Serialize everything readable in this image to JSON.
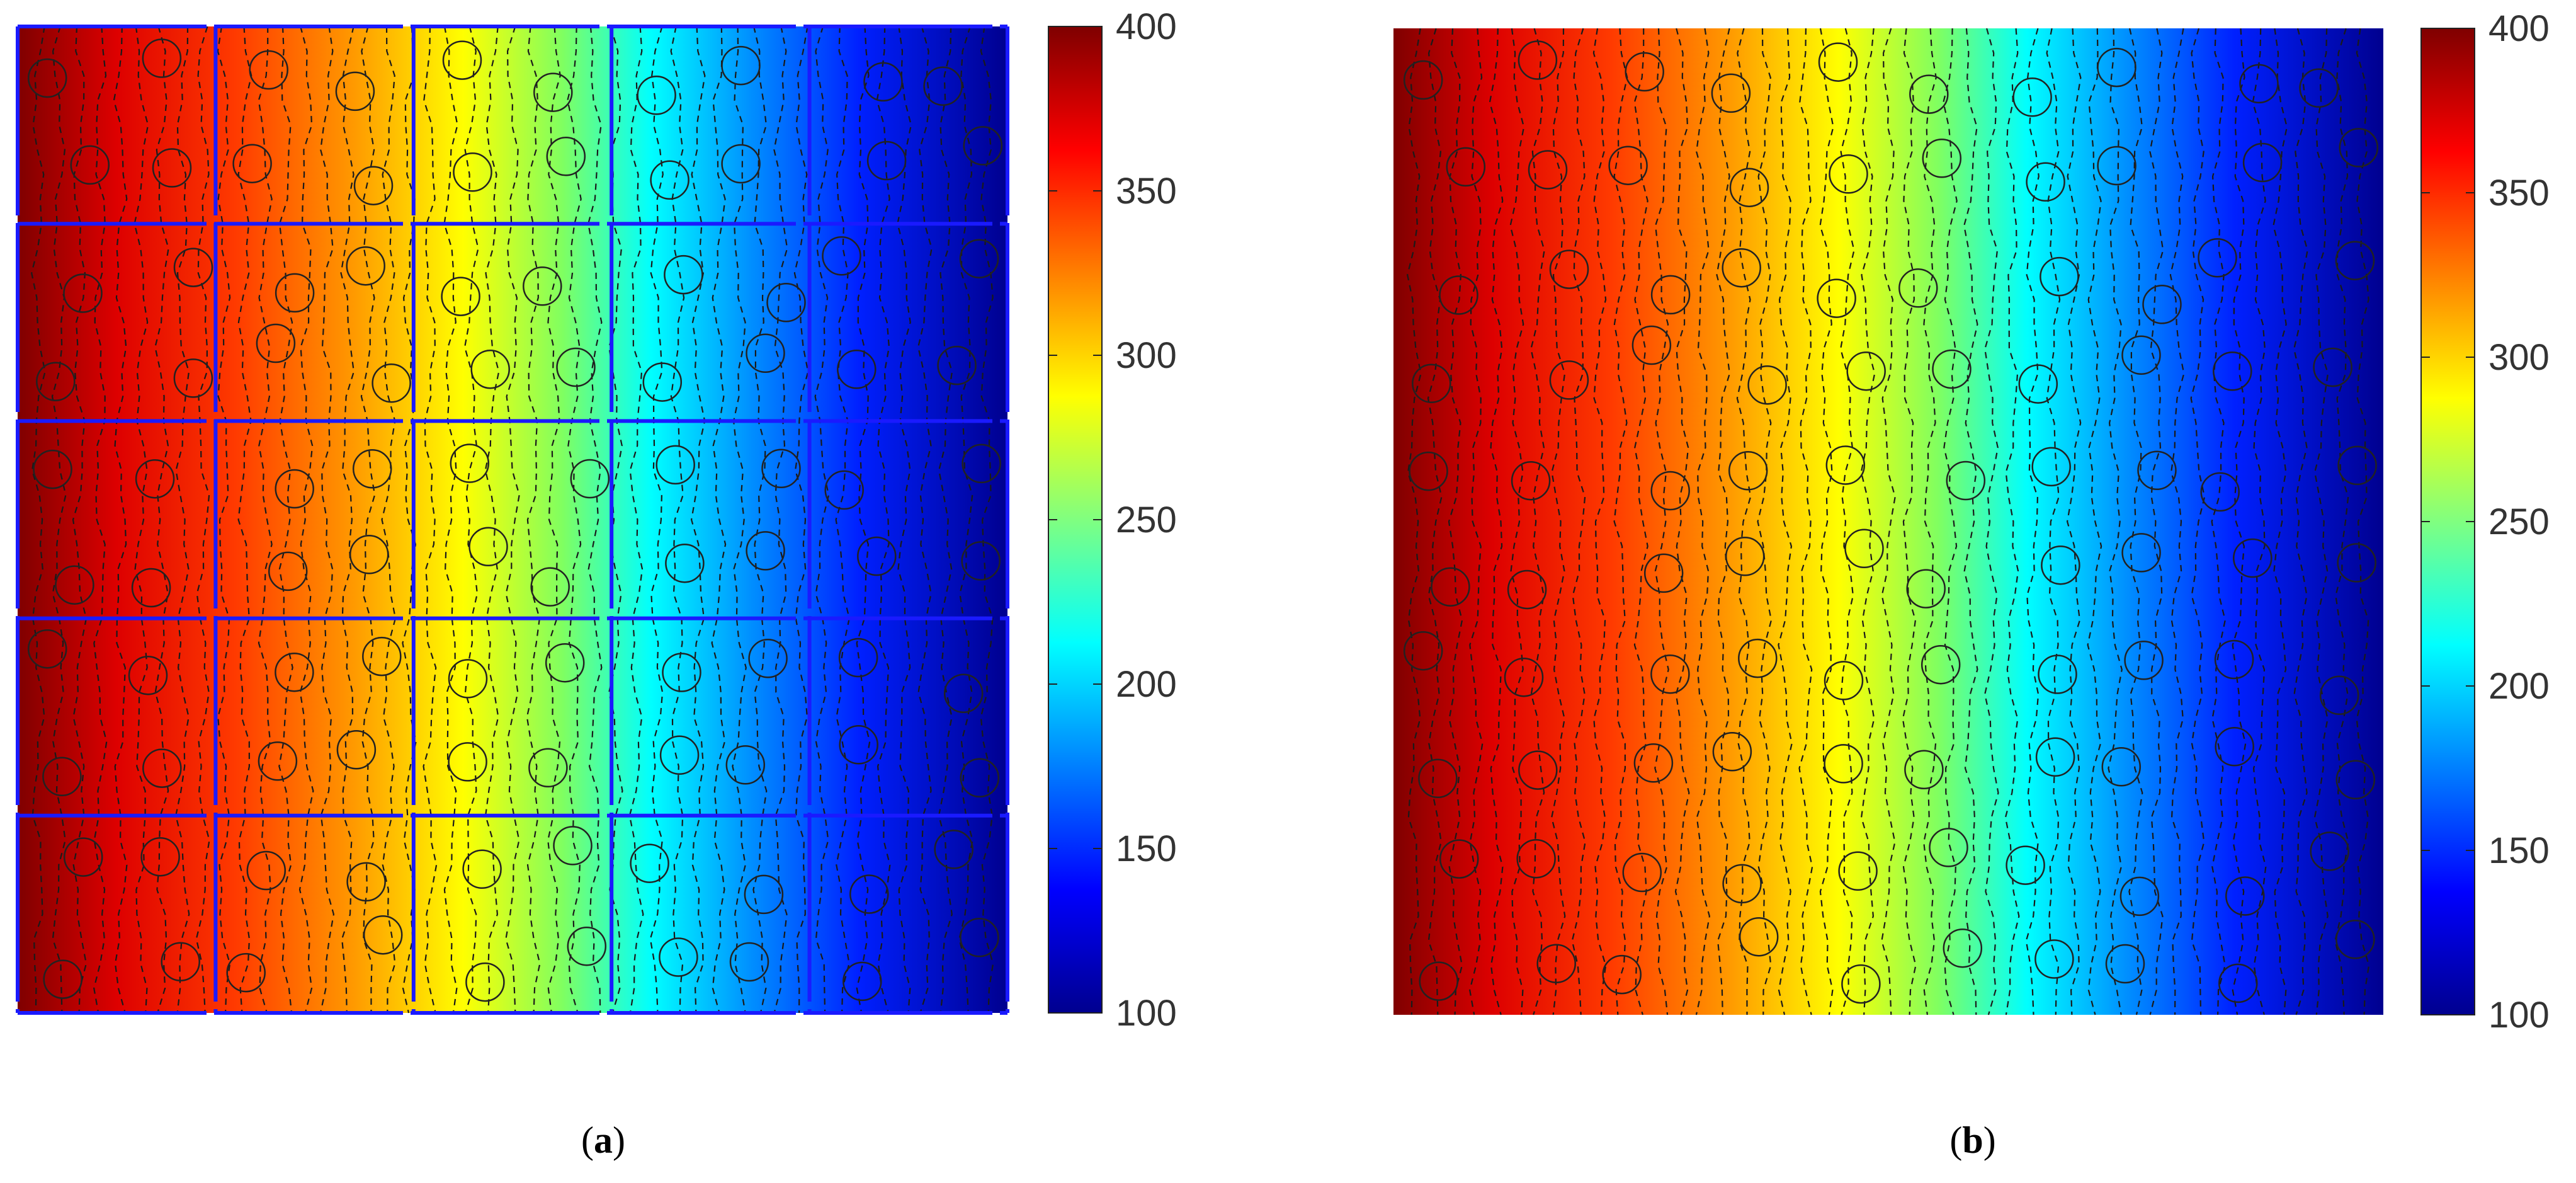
{
  "figure": {
    "panels": [
      {
        "id": "a",
        "caption_open": "(",
        "caption_letter": "a",
        "caption_close": ")"
      },
      {
        "id": "b",
        "caption_open": "(",
        "caption_letter": "b",
        "caption_close": ")"
      }
    ]
  },
  "chart_data": [
    {
      "type": "heatmap",
      "panel": "a",
      "title": "",
      "xlabel": "",
      "ylabel": "",
      "description_of_field": "temperature-like field decreasing from left to right, 5x5 grid of cells with circular inclusions and dashed isolines",
      "x_range": [
        0,
        1
      ],
      "y_range": [
        0,
        1
      ],
      "left_edge_value": 400,
      "right_edge_value": 100,
      "grid": {
        "rows": 5,
        "cols": 5,
        "color": "#1a1aff"
      },
      "colorbar": {
        "min": 100,
        "max": 400,
        "ticks": [
          "100",
          "150",
          "200",
          "250",
          "300",
          "350",
          "400"
        ],
        "colormap": "jet"
      },
      "inclusions_per_cell": 4
    },
    {
      "type": "heatmap",
      "panel": "b",
      "title": "",
      "xlabel": "",
      "ylabel": "",
      "description_of_field": "temperature-like field decreasing from left to right over homogenized domain with circular inclusions and dashed isolines",
      "x_range": [
        0,
        1
      ],
      "y_range": [
        0,
        1
      ],
      "left_edge_value": 400,
      "right_edge_value": 100,
      "grid": null,
      "colorbar": {
        "min": 100,
        "max": 400,
        "ticks": [
          "100",
          "150",
          "200",
          "250",
          "300",
          "350",
          "400"
        ],
        "colormap": "jet"
      },
      "inclusions_per_cell": 4
    }
  ]
}
